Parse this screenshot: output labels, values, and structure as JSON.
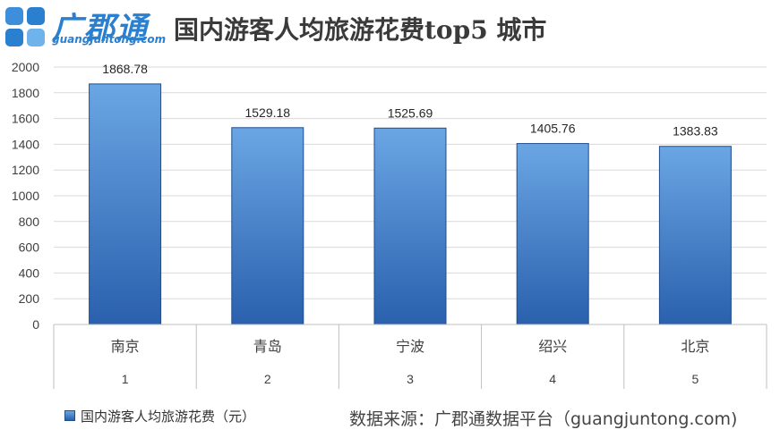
{
  "header": {
    "logo_name": "广郡通",
    "logo_url": "guangjuntong.com",
    "title": "国内游客人均旅游花费top5 城市"
  },
  "chart_data": {
    "type": "bar",
    "categories": [
      "南京",
      "青岛",
      "宁波",
      "绍兴",
      "北京"
    ],
    "category_ranks": [
      "1",
      "2",
      "3",
      "4",
      "5"
    ],
    "series": [
      {
        "name": "国内游客人均旅游花费（元）",
        "values": [
          1868.78,
          1529.18,
          1525.69,
          1405.76,
          1383.83
        ]
      }
    ],
    "data_labels": [
      "1868.78",
      "1529.18",
      "1525.69",
      "1405.76",
      "1383.83"
    ],
    "ylim": [
      0,
      2000
    ],
    "yticks": [
      "0",
      "200",
      "400",
      "600",
      "800",
      "1000",
      "1200",
      "1400",
      "1600",
      "1800",
      "2000"
    ],
    "grid": true,
    "legend_position": "bottom-left"
  },
  "footer": {
    "legend_label": "国内游客人均旅游花费（元）",
    "source": "数据来源：广郡通数据平台（guangjuntong.com)"
  },
  "colors": {
    "brand": "#2a7fcf",
    "bar_top": "#6aa6e4",
    "bar_bottom": "#2a60ad",
    "bar_edge": "#1f4d8c",
    "grid": "#d9d9d9",
    "axis": "#bfbfbf"
  }
}
